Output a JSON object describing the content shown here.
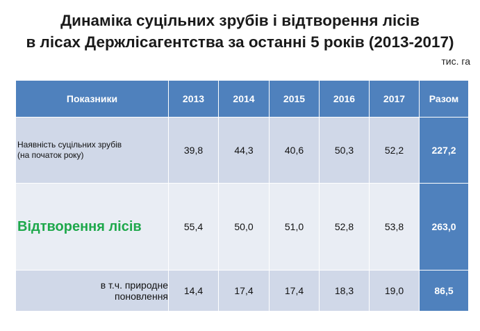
{
  "title": {
    "line1": "Динаміка суцільних зрубів і відтворення лісів",
    "line2": "в лісах Держлісагентства за останні 5 років (2013-2017)"
  },
  "unit": "тис. га",
  "table": {
    "headers": [
      "Показники",
      "2013",
      "2014",
      "2015",
      "2016",
      "2017",
      "Разом"
    ],
    "rows": [
      {
        "label_line1": "Наявність  суцільних  зрубів",
        "label_line2": "(на початок року)",
        "values": [
          "39,8",
          "44,3",
          "40,6",
          "50,3",
          "52,2"
        ],
        "total": "227,2"
      },
      {
        "label": "Відтворення лісів",
        "values": [
          "55,4",
          "50,0",
          "51,0",
          "52,8",
          "53,8"
        ],
        "total": "263,0"
      },
      {
        "label_line1": "в т.ч. природне",
        "label_line2": "поновлення",
        "values": [
          "14,4",
          "17,4",
          "17,4",
          "18,3",
          "19,0"
        ],
        "total": "86,5"
      }
    ]
  },
  "colors": {
    "header": "#4f81bd",
    "row_dark": "#d0d8e8",
    "row_light": "#e9edf4",
    "highlight_text": "#1ea84b"
  }
}
